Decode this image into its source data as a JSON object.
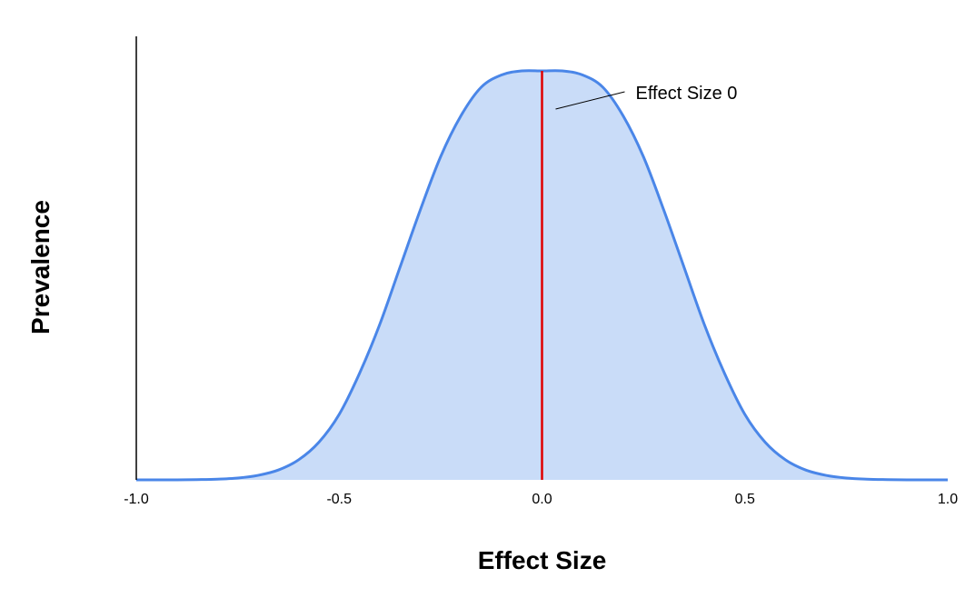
{
  "chart_data": {
    "type": "area",
    "title": "",
    "xlabel": "Effect Size",
    "ylabel": "Prevalence",
    "xlim": [
      -1.0,
      1.0
    ],
    "ylim": [
      0,
      1.0
    ],
    "x_ticks": [
      "-1.0",
      "-0.5",
      "0.0",
      "0.5",
      "1.0"
    ],
    "y_ticks_shown": false,
    "grid": false,
    "legend": "none",
    "series": [
      {
        "x": [
          -1.0,
          -0.95,
          -0.9,
          -0.85,
          -0.8,
          -0.75,
          -0.7,
          -0.65,
          -0.6,
          -0.55,
          -0.5,
          -0.45,
          -0.4,
          -0.35,
          -0.3,
          -0.25,
          -0.2,
          -0.15,
          -0.1,
          -0.05,
          0.0,
          0.05,
          0.1,
          0.15,
          0.2,
          0.25,
          0.3,
          0.35,
          0.4,
          0.45,
          0.5,
          0.55,
          0.6,
          0.65,
          0.7,
          0.75,
          0.8,
          0.85,
          0.9,
          0.95,
          1.0
        ],
        "values": [
          0.0,
          0.0,
          0.0,
          0.0006,
          0.0017,
          0.0044,
          0.011,
          0.024,
          0.049,
          0.092,
          0.16,
          0.26,
          0.38,
          0.52,
          0.66,
          0.79,
          0.89,
          0.96,
          0.99,
          1.0,
          1.0,
          1.0,
          0.99,
          0.96,
          0.89,
          0.79,
          0.66,
          0.52,
          0.38,
          0.26,
          0.16,
          0.092,
          0.049,
          0.024,
          0.011,
          0.0044,
          0.0017,
          0.0006,
          0.0,
          0.0,
          0.0
        ]
      }
    ],
    "reference_line": {
      "x": 0.0
    },
    "annotations": [
      {
        "text": "Effect Size 0",
        "x": 0.0
      }
    ],
    "colors": {
      "curve": "#4a86e8",
      "fill": "#c9dcf8",
      "reference_line": "#e00000",
      "axis": "#000000"
    }
  }
}
